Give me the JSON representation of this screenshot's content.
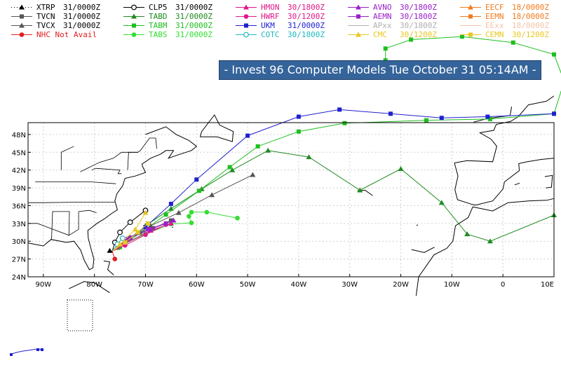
{
  "title": "- Invest 96 Computer Models Tue October 31 05:14AM -",
  "legend": [
    {
      "label": "XTRP",
      "time": "31/0000Z",
      "color": "#000000",
      "marker": "triangle",
      "dotted": true
    },
    {
      "label": "CLP5",
      "time": "31/0000Z",
      "color": "#000000",
      "marker": "circle-open"
    },
    {
      "label": "HMON",
      "time": "30/1800Z",
      "color": "#e0198a",
      "marker": "triangle"
    },
    {
      "label": "AVNO",
      "time": "30/1800Z",
      "color": "#9a20c8",
      "marker": "triangle"
    },
    {
      "label": "EECF",
      "time": "18/0000Z",
      "color": "#f07c1f",
      "marker": "triangle"
    },
    {
      "label": "TVCN",
      "time": "31/0000Z",
      "color": "#555555",
      "marker": "square"
    },
    {
      "label": "TABD",
      "time": "31/0000Z",
      "color": "#1f8a1f",
      "marker": "triangle"
    },
    {
      "label": "HWRF",
      "time": "30/1200Z",
      "color": "#e0198a",
      "marker": "circle"
    },
    {
      "label": "AEMN",
      "time": "30/1800Z",
      "color": "#9a20c8",
      "marker": "square"
    },
    {
      "label": "EEMN",
      "time": "18/0000Z",
      "color": "#f07c1f",
      "marker": "square"
    },
    {
      "label": "TVCX",
      "time": "31/0000Z",
      "color": "#555555",
      "marker": "triangle"
    },
    {
      "label": "TABM",
      "time": "31/0000Z",
      "color": "#1fbf1f",
      "marker": "square"
    },
    {
      "label": "UKM",
      "time": "31/0000Z",
      "color": "#2020d0",
      "marker": "square"
    },
    {
      "label": "APxx",
      "time": "30/1800Z",
      "color": "#b0b0b0",
      "marker": "none"
    },
    {
      "label": "EExx",
      "time": "18/0000Z",
      "color": "#f5c4a8",
      "marker": "none"
    },
    {
      "label": "NHC Not Avail",
      "time": "",
      "color": "#e02020",
      "marker": "circle"
    },
    {
      "label": "TABS",
      "time": "31/0000Z",
      "color": "#33dd33",
      "marker": "circle"
    },
    {
      "label": "COTC",
      "time": "30/1800Z",
      "color": "#20b8c0",
      "marker": "circle-open"
    },
    {
      "label": "CMC",
      "time": "30/1200Z",
      "color": "#e8c820",
      "marker": "triangle"
    },
    {
      "label": "CEMN",
      "time": "30/1200Z",
      "color": "#e8c820",
      "marker": "square"
    }
  ],
  "axes": {
    "lat_ticks": [
      "24N",
      "27N",
      "30N",
      "33N",
      "36N",
      "39N",
      "42N",
      "45N",
      "48N"
    ],
    "lon_ticks": [
      "90W",
      "80W",
      "70W",
      "60W",
      "50W",
      "40W",
      "30W",
      "20W",
      "10W",
      "0",
      "10E"
    ],
    "lon_range": [
      -93,
      10
    ],
    "lat_range": [
      24,
      50
    ]
  },
  "tracks": [
    {
      "name": "TABD",
      "color": "#1f8a1f",
      "marker": "triangle",
      "points": [
        [
          -76.5,
          28.3
        ],
        [
          -75.5,
          28.9
        ],
        [
          -73.0,
          30.5
        ],
        [
          -70.0,
          32.6
        ],
        [
          -65.0,
          35.5
        ],
        [
          -59.0,
          38.8
        ],
        [
          -53.0,
          42.0
        ],
        [
          -46.0,
          45.3
        ],
        [
          -38.0,
          44.2
        ],
        [
          -28.0,
          38.6
        ],
        [
          -20.0,
          42.2
        ],
        [
          -12.0,
          36.5
        ],
        [
          -7.0,
          31.2
        ],
        [
          -2.5,
          30.0
        ],
        [
          10.0,
          34.4
        ]
      ]
    },
    {
      "name": "TABM",
      "color": "#1fbf1f",
      "marker": "square",
      "points": [
        [
          -76.5,
          28.3
        ],
        [
          -75.0,
          29.0
        ],
        [
          -71.0,
          31.4
        ],
        [
          -66.0,
          34.5
        ],
        [
          -59.5,
          38.5
        ],
        [
          -53.5,
          42.5
        ],
        [
          -48.0,
          46.0
        ],
        [
          -40.0,
          48.5
        ],
        [
          -31.0,
          49.9
        ],
        [
          -15.0,
          50.4
        ],
        [
          -2.5,
          50.6
        ],
        [
          10.0,
          51.5
        ],
        [
          12.0,
          57.0
        ],
        [
          10.0,
          61.5
        ],
        [
          2.0,
          63.5
        ],
        [
          -8.0,
          64.5
        ],
        [
          -18.0,
          64.0
        ],
        [
          -23.0,
          62.5
        ],
        [
          -23.0,
          60.5
        ]
      ]
    },
    {
      "name": "UKM",
      "color": "#2020d0",
      "marker": "square",
      "points": [
        [
          -76.5,
          28.3
        ],
        [
          -74.0,
          30.0
        ],
        [
          -70.0,
          32.4
        ],
        [
          -65.0,
          36.3
        ],
        [
          -60.0,
          40.4
        ],
        [
          -50.0,
          47.8
        ],
        [
          -40.0,
          51.0
        ],
        [
          -32.0,
          52.2
        ],
        [
          -22.0,
          51.5
        ],
        [
          -12.0,
          50.8
        ],
        [
          -3.0,
          51.0
        ],
        [
          10.0,
          51.5
        ]
      ]
    },
    {
      "name": "TVCX",
      "color": "#555555",
      "marker": "triangle",
      "points": [
        [
          -76.5,
          28.3
        ],
        [
          -73.5,
          30.3
        ],
        [
          -69.0,
          32.6
        ],
        [
          -63.5,
          34.8
        ],
        [
          -57.0,
          37.8
        ],
        [
          -49.0,
          41.2
        ]
      ]
    },
    {
      "name": "TVCN",
      "color": "#555555",
      "marker": "square",
      "points": [
        [
          -76.5,
          28.3
        ],
        [
          -73.0,
          30.6
        ],
        [
          -68.5,
          32.2
        ],
        [
          -65.0,
          33.5
        ]
      ]
    },
    {
      "name": "TABS",
      "color": "#33dd33",
      "marker": "circle",
      "points": [
        [
          -76.5,
          28.3
        ],
        [
          -74.0,
          29.6
        ],
        [
          -70.0,
          31.2
        ],
        [
          -65.0,
          32.9
        ],
        [
          -61.0,
          33.1
        ],
        [
          -61.5,
          34.2
        ],
        [
          -61.0,
          34.9
        ],
        [
          -58.0,
          34.9
        ],
        [
          -52.0,
          33.9
        ]
      ]
    },
    {
      "name": "CLP5",
      "color": "#000000",
      "marker": "circle-open",
      "points": [
        [
          -76.5,
          28.3
        ],
        [
          -76.0,
          29.8
        ],
        [
          -75.0,
          31.5
        ],
        [
          -73.0,
          33.2
        ],
        [
          -70.0,
          35.2
        ]
      ]
    },
    {
      "name": "COTC",
      "color": "#20b8c0",
      "marker": "circle-open",
      "points": [
        [
          -76.5,
          28.3
        ],
        [
          -75.5,
          29.5
        ],
        [
          -74.5,
          30.5
        ]
      ]
    },
    {
      "name": "HWRF",
      "color": "#e0198a",
      "marker": "circle",
      "points": [
        [
          -76.5,
          28.3
        ],
        [
          -74.0,
          29.3
        ],
        [
          -70.0,
          31.1
        ],
        [
          -66.0,
          32.8
        ]
      ]
    },
    {
      "name": "HMON",
      "color": "#e0198a",
      "marker": "triangle",
      "points": [
        [
          -76.5,
          28.3
        ],
        [
          -74.0,
          29.6
        ],
        [
          -69.0,
          31.8
        ],
        [
          -65.0,
          33.0
        ]
      ]
    },
    {
      "name": "AVNO",
      "color": "#9a20c8",
      "marker": "triangle",
      "points": [
        [
          -76.5,
          28.3
        ],
        [
          -73.0,
          30.6
        ],
        [
          -69.0,
          32.0
        ],
        [
          -64.5,
          33.5
        ]
      ]
    },
    {
      "name": "AEMN",
      "color": "#9a20c8",
      "marker": "square",
      "points": [
        [
          -76.5,
          28.3
        ],
        [
          -73.5,
          30.4
        ],
        [
          -69.5,
          32.0
        ],
        [
          -66.0,
          33.0
        ]
      ]
    },
    {
      "name": "CMC",
      "color": "#e8c820",
      "marker": "triangle",
      "points": [
        [
          -76.5,
          28.3
        ],
        [
          -75.0,
          29.5
        ],
        [
          -72.0,
          32.0
        ],
        [
          -70.0,
          34.8
        ]
      ]
    },
    {
      "name": "CEMN",
      "color": "#e8c820",
      "marker": "square",
      "points": [
        [
          -76.5,
          28.3
        ],
        [
          -74.0,
          29.8
        ],
        [
          -71.5,
          31.5
        ],
        [
          -69.5,
          33.0
        ]
      ]
    },
    {
      "name": "NHC",
      "color": "#e02020",
      "marker": "circle",
      "points": [
        [
          -76.5,
          28.3
        ],
        [
          -76.0,
          27.0
        ]
      ]
    },
    {
      "name": "XTRP",
      "color": "#000000",
      "marker": "triangle",
      "dotted": true,
      "points": [
        [
          -76.5,
          28.3
        ],
        [
          -77.0,
          28.4
        ]
      ]
    }
  ]
}
